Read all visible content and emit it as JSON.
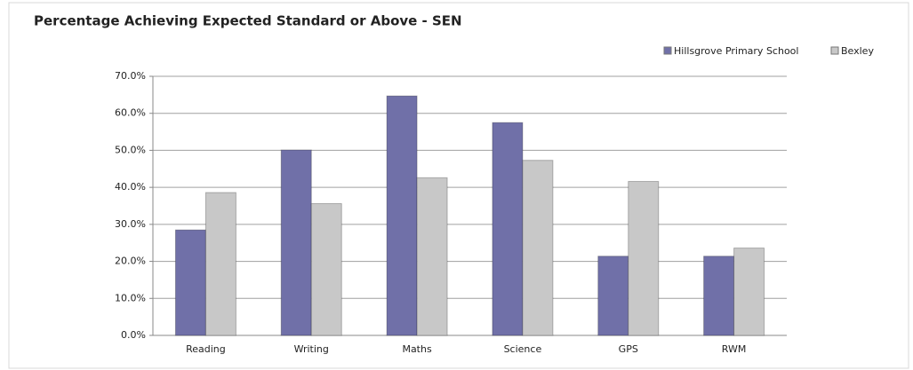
{
  "chart_data": {
    "type": "bar",
    "title": "Percentage Achieving Expected Standard or Above - SEN",
    "categories": [
      "Reading",
      "Writing",
      "Maths",
      "Science",
      "GPS",
      "RWM"
    ],
    "series": [
      {
        "name": "Hillsgrove Primary School",
        "color": "#7070a8",
        "values": [
          28.5,
          50.1,
          64.7,
          57.5,
          21.4,
          21.4
        ]
      },
      {
        "name": "Bexley",
        "color": "#c8c8c8",
        "values": [
          38.6,
          35.6,
          42.6,
          47.3,
          41.6,
          23.6
        ]
      }
    ],
    "ylim": [
      0,
      70
    ],
    "yticks": [
      {
        "value": 0,
        "label": "0.0%"
      },
      {
        "value": 10,
        "label": "10.0%"
      },
      {
        "value": 20,
        "label": "20.0%"
      },
      {
        "value": 30,
        "label": "30.0%"
      },
      {
        "value": 40,
        "label": "40.0%"
      },
      {
        "value": 50,
        "label": "50.0%"
      },
      {
        "value": 60,
        "label": "60.0%"
      },
      {
        "value": 70,
        "label": "70.0%"
      }
    ],
    "grid": true,
    "legend": "top-right"
  }
}
